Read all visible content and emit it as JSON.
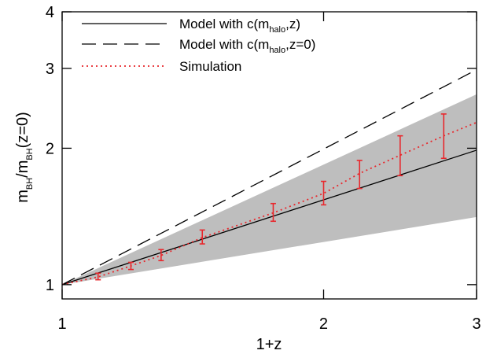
{
  "chart_data": {
    "type": "line",
    "xlabel": "1+z",
    "ylabel": {
      "pre": "m",
      "sub1": "BH",
      "mid": "/m",
      "sub2": "BH",
      "post": "(z=0)"
    },
    "x_scale": "log",
    "y_scale": "log",
    "xlim": [
      1,
      3
    ],
    "ylim": [
      0.93,
      4
    ],
    "x_ticks": [
      {
        "value": 1,
        "label": "1"
      },
      {
        "value": 2,
        "label": "2"
      },
      {
        "value": 3,
        "label": "3"
      }
    ],
    "y_ticks": [
      {
        "value": 1,
        "label": "1"
      },
      {
        "value": 2,
        "label": "2"
      },
      {
        "value": 3,
        "label": "3"
      },
      {
        "value": 4,
        "label": "4"
      }
    ],
    "band": {
      "color": "#bebebe",
      "x": [
        1,
        3
      ],
      "lower": [
        1.0,
        1.41
      ],
      "upper": [
        1.0,
        2.63
      ]
    },
    "series": [
      {
        "name": {
          "pre": "Model with c(m",
          "sub": "halo",
          "post": ",z)"
        },
        "style": "solid",
        "color": "#000000",
        "x": [
          1,
          3
        ],
        "y": [
          1.0,
          1.98
        ]
      },
      {
        "name": {
          "pre": "Model with c(m",
          "sub": "halo",
          "post": ",z=0)"
        },
        "style": "dashed",
        "color": "#000000",
        "x": [
          1,
          3
        ],
        "y": [
          1.0,
          2.98
        ]
      },
      {
        "name": {
          "pre": "Simulation",
          "sub": "",
          "post": ""
        },
        "style": "dotted",
        "color": "#e8282d",
        "x": [
          1,
          1.1,
          1.2,
          1.3,
          1.45,
          1.75,
          2.0,
          2.2,
          2.45,
          2.75,
          3.0
        ],
        "y": [
          1.0,
          1.04,
          1.1,
          1.16,
          1.27,
          1.44,
          1.59,
          1.76,
          1.93,
          2.13,
          2.28
        ],
        "error_bars": [
          {
            "x": 1.1,
            "y": 1.04,
            "lo": 1.025,
            "hi": 1.06
          },
          {
            "x": 1.2,
            "y": 1.1,
            "lo": 1.08,
            "hi": 1.12
          },
          {
            "x": 1.3,
            "y": 1.16,
            "lo": 1.13,
            "hi": 1.195
          },
          {
            "x": 1.45,
            "y": 1.27,
            "lo": 1.23,
            "hi": 1.32
          },
          {
            "x": 1.75,
            "y": 1.44,
            "lo": 1.38,
            "hi": 1.51
          },
          {
            "x": 2.0,
            "y": 1.59,
            "lo": 1.5,
            "hi": 1.69
          },
          {
            "x": 2.2,
            "y": 1.76,
            "lo": 1.63,
            "hi": 1.88
          },
          {
            "x": 2.45,
            "y": 1.93,
            "lo": 1.74,
            "hi": 2.13
          },
          {
            "x": 2.75,
            "y": 2.13,
            "lo": 1.9,
            "hi": 2.38
          }
        ]
      }
    ],
    "legend_position": "top-left"
  }
}
